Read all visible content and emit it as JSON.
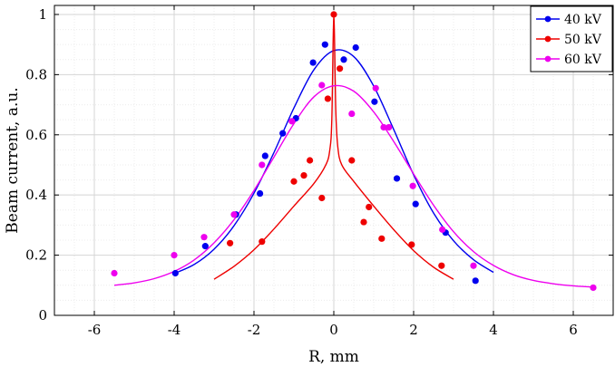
{
  "chart_data": {
    "type": "scatter",
    "title": "",
    "xlabel": "R, mm",
    "ylabel": "Beam current, a.u.",
    "xlim": [
      -7,
      7
    ],
    "ylim": [
      0,
      1.03
    ],
    "xticks": [
      -6,
      -4,
      -2,
      0,
      2,
      4,
      6
    ],
    "xtick_labels": [
      "-6",
      "-4",
      "-2",
      "0",
      "2",
      "4",
      "6"
    ],
    "yticks": [
      0,
      0.2,
      0.4,
      0.6,
      0.8,
      1
    ],
    "ytick_labels": [
      "0",
      "0.2",
      "0.4",
      "0.6",
      "0.8",
      "1"
    ],
    "grid": true,
    "legend_position": "top-right",
    "series": [
      {
        "name": "40 kV",
        "color": "#0000ee",
        "points": [
          [
            -3.97,
            0.14
          ],
          [
            -3.22,
            0.23
          ],
          [
            -2.45,
            0.335
          ],
          [
            -1.85,
            0.405
          ],
          [
            -1.72,
            0.53
          ],
          [
            -1.28,
            0.605
          ],
          [
            -0.95,
            0.655
          ],
          [
            -0.52,
            0.84
          ],
          [
            -0.22,
            0.9
          ],
          [
            0.25,
            0.85
          ],
          [
            0.55,
            0.89
          ],
          [
            1.02,
            0.71
          ],
          [
            1.58,
            0.455
          ],
          [
            2.05,
            0.37
          ],
          [
            2.8,
            0.275
          ],
          [
            3.55,
            0.115
          ]
        ],
        "fit": [
          [
            -4.0,
            0.139
          ],
          [
            -3.5,
            0.169
          ],
          [
            -3.0,
            0.22
          ],
          [
            -2.5,
            0.298
          ],
          [
            -2.0,
            0.406
          ],
          [
            -1.5,
            0.541
          ],
          [
            -1.0,
            0.689
          ],
          [
            -0.5,
            0.816
          ],
          [
            0.0,
            0.88
          ],
          [
            0.5,
            0.86
          ],
          [
            1.0,
            0.762
          ],
          [
            1.5,
            0.618
          ],
          [
            2.0,
            0.467
          ],
          [
            2.5,
            0.34
          ],
          [
            3.0,
            0.248
          ],
          [
            3.5,
            0.185
          ],
          [
            4.0,
            0.143
          ]
        ]
      },
      {
        "name": "50 kV",
        "color": "#ee0000",
        "points": [
          [
            -2.6,
            0.24
          ],
          [
            -1.8,
            0.245
          ],
          [
            -1.0,
            0.445
          ],
          [
            -0.75,
            0.465
          ],
          [
            -0.6,
            0.515
          ],
          [
            -0.3,
            0.39
          ],
          [
            -0.15,
            0.72
          ],
          [
            0.0,
            1.0
          ],
          [
            0.15,
            0.82
          ],
          [
            0.45,
            0.515
          ],
          [
            0.75,
            0.31
          ],
          [
            0.88,
            0.36
          ],
          [
            1.2,
            0.255
          ],
          [
            1.95,
            0.235
          ],
          [
            2.7,
            0.165
          ]
        ],
        "fit": [
          [
            -3.0,
            0.12
          ],
          [
            -2.5,
            0.163
          ],
          [
            -2.0,
            0.218
          ],
          [
            -1.5,
            0.287
          ],
          [
            -1.0,
            0.363
          ],
          [
            -0.5,
            0.438
          ],
          [
            -0.2,
            0.5
          ],
          [
            -0.1,
            0.55
          ],
          [
            -0.05,
            0.65
          ],
          [
            0.0,
            0.99
          ],
          [
            0.05,
            0.68
          ],
          [
            0.1,
            0.56
          ],
          [
            0.2,
            0.5
          ],
          [
            0.5,
            0.445
          ],
          [
            1.0,
            0.363
          ],
          [
            1.5,
            0.285
          ],
          [
            2.0,
            0.215
          ],
          [
            2.5,
            0.16
          ],
          [
            3.0,
            0.12
          ]
        ]
      },
      {
        "name": "60 kV",
        "color": "#ee00ee",
        "points": [
          [
            -5.5,
            0.14
          ],
          [
            -4.0,
            0.2
          ],
          [
            -3.25,
            0.26
          ],
          [
            -2.5,
            0.335
          ],
          [
            -1.8,
            0.5
          ],
          [
            -1.05,
            0.645
          ],
          [
            -0.3,
            0.765
          ],
          [
            0.45,
            0.67
          ],
          [
            1.05,
            0.755
          ],
          [
            1.25,
            0.625
          ],
          [
            1.38,
            0.625
          ],
          [
            1.98,
            0.43
          ],
          [
            2.72,
            0.285
          ],
          [
            3.5,
            0.165
          ],
          [
            6.5,
            0.092
          ]
        ],
        "fit": [
          [
            -5.5,
            0.1
          ],
          [
            -5.0,
            0.108
          ],
          [
            -4.5,
            0.122
          ],
          [
            -4.0,
            0.146
          ],
          [
            -3.5,
            0.184
          ],
          [
            -3.0,
            0.241
          ],
          [
            -2.5,
            0.318
          ],
          [
            -2.0,
            0.415
          ],
          [
            -1.5,
            0.526
          ],
          [
            -1.0,
            0.637
          ],
          [
            -0.5,
            0.726
          ],
          [
            0.0,
            0.763
          ],
          [
            0.5,
            0.745
          ],
          [
            1.0,
            0.676
          ],
          [
            1.5,
            0.578
          ],
          [
            2.0,
            0.47
          ],
          [
            2.5,
            0.366
          ],
          [
            3.0,
            0.278
          ],
          [
            3.5,
            0.212
          ],
          [
            4.0,
            0.166
          ],
          [
            4.5,
            0.135
          ],
          [
            5.0,
            0.116
          ],
          [
            5.5,
            0.105
          ],
          [
            6.0,
            0.098
          ],
          [
            6.5,
            0.094
          ]
        ]
      }
    ]
  }
}
